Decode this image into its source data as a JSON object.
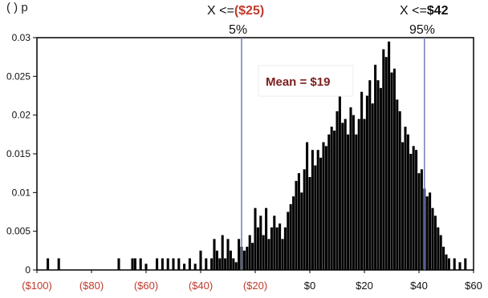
{
  "header": {
    "top_left_partial": "( ) p",
    "left_marker_prefix": "X <=",
    "left_marker_value": "($25)",
    "left_marker_percent": "5%",
    "right_marker_prefix": "X <=",
    "right_marker_value": "$42",
    "right_marker_percent": "95%"
  },
  "annotation": {
    "mean_label": "Mean = $19"
  },
  "colors": {
    "bars": "#000000",
    "marker_lines": "#6a7fb8",
    "negative_tick_labels": "#c0392b",
    "positive_tick_labels": "#111111",
    "left_marker_value": "#c0392b"
  },
  "chart_data": {
    "type": "bar",
    "title": "",
    "xlabel": "",
    "ylabel": "",
    "xlim": [
      -100,
      60
    ],
    "ylim": [
      0,
      0.03
    ],
    "x_ticks": [
      -100,
      -80,
      -60,
      -40,
      -20,
      0,
      20,
      40,
      60
    ],
    "x_tick_labels": [
      "($100)",
      "($80)",
      "($60)",
      "($40)",
      "($20)",
      "$0",
      "$20",
      "$40",
      "$60"
    ],
    "y_ticks": [
      0,
      0.005,
      0.01,
      0.015,
      0.02,
      0.025,
      0.03
    ],
    "y_tick_labels": [
      "0",
      "0.005",
      "0.01",
      "0.015",
      "0.02",
      "0.025",
      "0.03"
    ],
    "grid": false,
    "markers": [
      {
        "x": -25,
        "label": "X <= ($25)",
        "percentile": "5%"
      },
      {
        "x": 42,
        "label": "X <= $42",
        "percentile": "95%"
      }
    ],
    "mean": 19,
    "series": [
      {
        "values": [
          [
            -96,
            0.0015
          ],
          [
            -92,
            0.0015
          ],
          [
            -70,
            0.0015
          ],
          [
            -65,
            0.0015
          ],
          [
            -64,
            0.0015
          ],
          [
            -62,
            0.0015
          ],
          [
            -60,
            0.0008
          ],
          [
            -56,
            0.0015
          ],
          [
            -54,
            0.0015
          ],
          [
            -52,
            0.0015
          ],
          [
            -50,
            0.0015
          ],
          [
            -48,
            0.0015
          ],
          [
            -46,
            0.0008
          ],
          [
            -44,
            0.0015
          ],
          [
            -42,
            0.0008
          ],
          [
            -40,
            0.0025
          ],
          [
            -38,
            0.0015
          ],
          [
            -36,
            0.0015
          ],
          [
            -35,
            0.004
          ],
          [
            -34,
            0.0025
          ],
          [
            -33,
            0.0015
          ],
          [
            -32,
            0.0045
          ],
          [
            -31,
            0.0015
          ],
          [
            -30,
            0.004
          ],
          [
            -29,
            0.0025
          ],
          [
            -28,
            0.0015
          ],
          [
            -27,
            0.001
          ],
          [
            -26,
            0.004
          ],
          [
            -25,
            0.003
          ],
          [
            -24,
            0.0025
          ],
          [
            -23,
            0.003
          ],
          [
            -22,
            0.0045
          ],
          [
            -21,
            0.0035
          ],
          [
            -20,
            0.008
          ],
          [
            -19,
            0.0055
          ],
          [
            -18,
            0.007
          ],
          [
            -17,
            0.0045
          ],
          [
            -16,
            0.008
          ],
          [
            -15,
            0.004
          ],
          [
            -14,
            0.0055
          ],
          [
            -13,
            0.007
          ],
          [
            -12,
            0.0055
          ],
          [
            -11,
            0.006
          ],
          [
            -10,
            0.004
          ],
          [
            -9,
            0.0055
          ],
          [
            -8,
            0.0075
          ],
          [
            -7,
            0.0085
          ],
          [
            -6,
            0.0095
          ],
          [
            -5,
            0.0115
          ],
          [
            -4,
            0.0125
          ],
          [
            -3,
            0.01
          ],
          [
            -2,
            0.013
          ],
          [
            -1,
            0.0165
          ],
          [
            0,
            0.012
          ],
          [
            1,
            0.0155
          ],
          [
            2,
            0.0135
          ],
          [
            3,
            0.0155
          ],
          [
            4,
            0.0145
          ],
          [
            5,
            0.0165
          ],
          [
            6,
            0.016
          ],
          [
            7,
            0.0175
          ],
          [
            8,
            0.0185
          ],
          [
            9,
            0.018
          ],
          [
            10,
            0.0205
          ],
          [
            11,
            0.0225
          ],
          [
            12,
            0.019
          ],
          [
            13,
            0.0195
          ],
          [
            14,
            0.0175
          ],
          [
            15,
            0.021
          ],
          [
            16,
            0.02
          ],
          [
            17,
            0.0175
          ],
          [
            18,
            0.0195
          ],
          [
            19,
            0.023
          ],
          [
            20,
            0.0195
          ],
          [
            21,
            0.0225
          ],
          [
            22,
            0.0245
          ],
          [
            23,
            0.0215
          ],
          [
            24,
            0.0265
          ],
          [
            25,
            0.0245
          ],
          [
            26,
            0.0235
          ],
          [
            27,
            0.0285
          ],
          [
            28,
            0.0275
          ],
          [
            29,
            0.0295
          ],
          [
            30,
            0.0255
          ],
          [
            31,
            0.026
          ],
          [
            32,
            0.022
          ],
          [
            33,
            0.0205
          ],
          [
            34,
            0.0165
          ],
          [
            35,
            0.0185
          ],
          [
            36,
            0.0175
          ],
          [
            37,
            0.015
          ],
          [
            38,
            0.016
          ],
          [
            39,
            0.0155
          ],
          [
            40,
            0.0125
          ],
          [
            41,
            0.013
          ],
          [
            42,
            0.0105
          ],
          [
            43,
            0.0095
          ],
          [
            44,
            0.01
          ],
          [
            45,
            0.008
          ],
          [
            46,
            0.007
          ],
          [
            47,
            0.0055
          ],
          [
            48,
            0.0045
          ],
          [
            49,
            0.003
          ],
          [
            50,
            0.002
          ],
          [
            51,
            0.0015
          ],
          [
            53,
            0.0015
          ],
          [
            55,
            0.001
          ],
          [
            57,
            0.0015
          ]
        ]
      }
    ]
  }
}
